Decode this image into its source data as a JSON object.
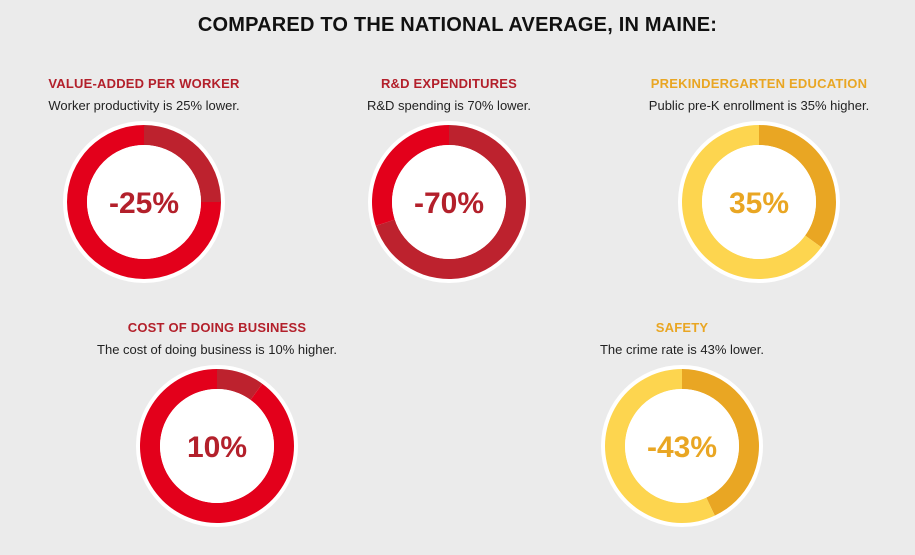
{
  "page": {
    "title": "COMPARED TO THE NATIONAL AVERAGE, IN MAINE:"
  },
  "colors": {
    "red_label": "#b3202b",
    "orange_label": "#e9a623",
    "red_bright": "#e3001b",
    "red_dark": "#bd222e",
    "yellow_light": "#fdd54f",
    "yellow_dark": "#e9a623",
    "ring_outline": "#ffffff"
  },
  "chart_data": [
    {
      "type": "pie",
      "title": "VALUE-ADDED PER WORKER",
      "subtitle": "Worker productivity is 25% lower.",
      "value_label": "-25%",
      "values": [
        25,
        75
      ],
      "slice_colors": [
        "#bd222e",
        "#e3001b"
      ],
      "label_color": "#b3202b",
      "text_color": "#b3202b"
    },
    {
      "type": "pie",
      "title": "R&D EXPENDITURES",
      "subtitle": "R&D spending is 70% lower.",
      "value_label": "-70%",
      "values": [
        70,
        30
      ],
      "slice_colors": [
        "#bd222e",
        "#e3001b"
      ],
      "label_color": "#b3202b",
      "text_color": "#b3202b"
    },
    {
      "type": "pie",
      "title": "PREKINDERGARTEN EDUCATION",
      "subtitle": "Public pre-K enrollment is 35% higher.",
      "value_label": "35%",
      "values": [
        35,
        65
      ],
      "slice_colors": [
        "#e9a623",
        "#fdd54f"
      ],
      "label_color": "#e9a623",
      "text_color": "#e9a623"
    },
    {
      "type": "pie",
      "title": "COST OF DOING BUSINESS",
      "subtitle": "The cost of doing business is 10% higher.",
      "value_label": "10%",
      "values": [
        10,
        90
      ],
      "slice_colors": [
        "#bd222e",
        "#e3001b"
      ],
      "label_color": "#b3202b",
      "text_color": "#b3202b"
    },
    {
      "type": "pie",
      "title": "SAFETY",
      "subtitle": "The crime rate is 43% lower.",
      "value_label": "-43%",
      "values": [
        43,
        57
      ],
      "slice_colors": [
        "#e9a623",
        "#fdd54f"
      ],
      "label_color": "#e9a623",
      "text_color": "#e9a623"
    }
  ]
}
